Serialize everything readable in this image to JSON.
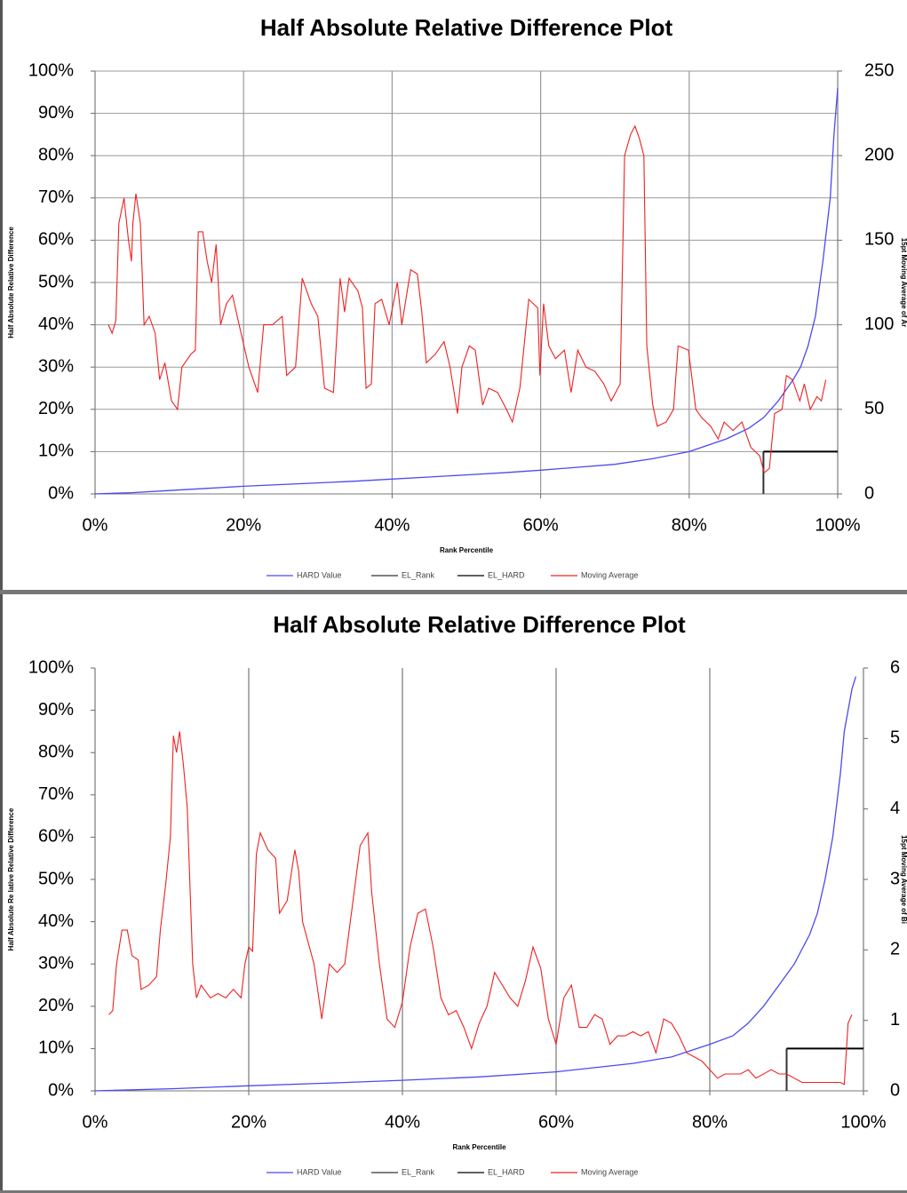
{
  "chart_data": [
    {
      "type": "line",
      "title": "Half Absolute Relative Difference Plot",
      "x_label": "Rank Percentile",
      "y_label": "Half Absolute Relative Difference",
      "y2_label": "15pt Moving Average of Ar",
      "xlim": [
        0,
        100
      ],
      "ylim": [
        0,
        100
      ],
      "y2lim": [
        0,
        250
      ],
      "xticks": [
        {
          "value": 0,
          "label": "0%"
        },
        {
          "value": 20,
          "label": "20%"
        },
        {
          "value": 40,
          "label": "40%"
        },
        {
          "value": 60,
          "label": "60%"
        },
        {
          "value": 80,
          "label": "80%"
        },
        {
          "value": 100,
          "label": "100%"
        }
      ],
      "yticks": [
        {
          "value": 0,
          "label": "0%"
        },
        {
          "value": 10,
          "label": "10%"
        },
        {
          "value": 20,
          "label": "20%"
        },
        {
          "value": 30,
          "label": "30%"
        },
        {
          "value": 40,
          "label": "40%"
        },
        {
          "value": 50,
          "label": "50%"
        },
        {
          "value": 60,
          "label": "60%"
        },
        {
          "value": 70,
          "label": "70%"
        },
        {
          "value": 80,
          "label": "80%"
        },
        {
          "value": 90,
          "label": "90%"
        },
        {
          "value": 100,
          "label": "100%"
        }
      ],
      "y2ticks": [
        0,
        50,
        100,
        150,
        200,
        250
      ],
      "grid": "both",
      "legend": "bottom",
      "series": [
        {
          "name": "HARD Value",
          "color": "#4a4af0",
          "axis": "y",
          "x": [
            0,
            5,
            10,
            15,
            20,
            25,
            30,
            35,
            40,
            45,
            50,
            55,
            60,
            65,
            70,
            75,
            80,
            85,
            88,
            90,
            92,
            94,
            95,
            96,
            97,
            98,
            99,
            99.5,
            100
          ],
          "values": [
            0,
            0.3,
            0.8,
            1.3,
            1.8,
            2.2,
            2.6,
            3.0,
            3.5,
            4.0,
            4.5,
            5.0,
            5.6,
            6.3,
            7.0,
            8.3,
            10,
            13,
            15.5,
            18,
            22,
            27,
            30,
            35,
            42,
            55,
            70,
            85,
            96
          ]
        },
        {
          "name": "EL_Rank",
          "color": "#333333",
          "axis": "y",
          "x": [
            90,
            90
          ],
          "values": [
            0,
            10
          ]
        },
        {
          "name": "EL_HARD",
          "color": "#000000",
          "axis": "y",
          "x": [
            90,
            100
          ],
          "values": [
            10,
            10
          ]
        },
        {
          "name": "Moving Average",
          "color": "#ee2020",
          "axis": "y2",
          "x": [
            1.8,
            2.3,
            2.8,
            3.2,
            3.9,
            4.5,
            4.9,
            5.1,
            5.5,
            6.1,
            6.6,
            7.3,
            8.1,
            8.7,
            9.4,
            10.3,
            11.1,
            11.7,
            12.9,
            13.5,
            13.9,
            14.5,
            15.1,
            15.7,
            16.3,
            16.9,
            17.7,
            18.5,
            19.4,
            20.7,
            21.9,
            22.7,
            23.9,
            25.2,
            25.8,
            27.0,
            27.9,
            29.1,
            30.0,
            30.9,
            32.1,
            33.0,
            33.6,
            34.2,
            35.4,
            36.0,
            36.5,
            37.2,
            37.7,
            38.6,
            39.6,
            40.7,
            41.3,
            42.5,
            43.4,
            44.0,
            44.6,
            45.8,
            47.0,
            47.8,
            48.8,
            49.4,
            50.4,
            51.2,
            52.2,
            53.0,
            54.2,
            55.4,
            56.2,
            57.2,
            58.4,
            59.6,
            59.9,
            60.4,
            61.1,
            62.0,
            63.2,
            64.1,
            65.0,
            66.1,
            67.3,
            68.5,
            69.5,
            70.7,
            71.3,
            72.1,
            72.7,
            73.3,
            73.9,
            74.3,
            75.1,
            75.7,
            76.9,
            77.9,
            78.5,
            79.9,
            80.9,
            81.7,
            82.9,
            83.9,
            84.7,
            85.9,
            87.1,
            88.3,
            89.5,
            90.1,
            90.8,
            91.5,
            92.5,
            93.1,
            93.9,
            94.9,
            95.5,
            96.3,
            97.2,
            97.8,
            98.4
          ],
          "values": [
            100,
            95,
            102.5,
            160,
            175,
            150,
            137.5,
            160,
            177.5,
            160,
            100,
            105,
            95,
            67.5,
            77.5,
            55,
            50,
            75,
            82.5,
            85,
            155,
            155,
            137.5,
            125,
            147.5,
            100,
            112.5,
            117.5,
            100,
            75,
            60,
            100,
            100,
            105,
            70,
            75,
            127.5,
            112.5,
            105,
            62.5,
            60,
            127.5,
            107.5,
            127.5,
            120,
            110,
            62.5,
            65,
            112.5,
            115,
            100,
            125,
            100,
            132.5,
            130,
            107.5,
            77.5,
            82.5,
            90,
            75,
            47.5,
            75,
            87.5,
            85,
            52.5,
            62.5,
            60,
            50,
            42.5,
            62.5,
            115,
            110,
            70,
            112.5,
            87.5,
            80,
            85,
            60,
            85,
            75,
            72.5,
            65,
            55,
            65,
            200,
            212.5,
            217.5,
            210,
            200,
            87.5,
            52.5,
            40,
            42.5,
            50,
            87.5,
            85,
            50,
            45,
            40,
            32.5,
            42.5,
            37.5,
            42.5,
            27.5,
            22.5,
            12.5,
            15,
            47.5,
            50,
            70,
            67.5,
            55,
            65,
            50,
            57.5,
            55,
            67.5
          ]
        }
      ]
    },
    {
      "type": "line",
      "title": "Half Absolute Relative Difference Plot",
      "x_label": "Rank Percentile",
      "y_label": "Half Absolute Re lative Relative Difference",
      "y2_label": "15pt Moving Average of Bi",
      "xlim": [
        0,
        100
      ],
      "ylim": [
        0,
        100
      ],
      "y2lim": [
        0,
        6
      ],
      "xticks": [
        {
          "value": 0,
          "label": "0%"
        },
        {
          "value": 20,
          "label": "20%"
        },
        {
          "value": 40,
          "label": "40%"
        },
        {
          "value": 60,
          "label": "60%"
        },
        {
          "value": 80,
          "label": "80%"
        },
        {
          "value": 100,
          "label": "100%"
        }
      ],
      "yticks": [
        {
          "value": 0,
          "label": "0%"
        },
        {
          "value": 10,
          "label": "10%"
        },
        {
          "value": 20,
          "label": "20%"
        },
        {
          "value": 30,
          "label": "30%"
        },
        {
          "value": 40,
          "label": "40%"
        },
        {
          "value": 50,
          "label": "50%"
        },
        {
          "value": 60,
          "label": "60%"
        },
        {
          "value": 70,
          "label": "70%"
        },
        {
          "value": 80,
          "label": "80%"
        },
        {
          "value": 90,
          "label": "90%"
        },
        {
          "value": 100,
          "label": "100%"
        }
      ],
      "y2ticks": [
        0,
        1,
        2,
        3,
        4,
        5,
        6
      ],
      "grid": "x",
      "legend": "bottom",
      "series": [
        {
          "name": "HARD Value",
          "color": "#4a4af0",
          "axis": "y",
          "x": [
            0,
            10,
            20,
            30,
            40,
            50,
            60,
            70,
            75,
            80,
            83,
            85,
            87,
            89,
            91,
            93,
            94,
            95,
            96,
            97,
            97.5,
            98,
            98.5,
            99
          ],
          "values": [
            0,
            0.5,
            1.2,
            1.8,
            2.5,
            3.3,
            4.5,
            6.5,
            8,
            11,
            13,
            16,
            20,
            25,
            30,
            37,
            42,
            50,
            60,
            75,
            85,
            90,
            95,
            98
          ]
        },
        {
          "name": "EL_Rank",
          "color": "#333333",
          "axis": "y",
          "x": [
            90,
            90
          ],
          "values": [
            0,
            10
          ]
        },
        {
          "name": "EL_HARD",
          "color": "#000000",
          "axis": "y",
          "x": [
            90,
            100
          ],
          "values": [
            10,
            10
          ]
        },
        {
          "name": "Moving Average",
          "color": "#ee2020",
          "axis": "y2",
          "x": [
            1.8,
            2.3,
            2.8,
            3.5,
            4.2,
            4.8,
            5.6,
            6.0,
            7.0,
            8.0,
            8.5,
            9.2,
            9.8,
            10.2,
            10.6,
            11.0,
            11.5,
            12.0,
            12.7,
            13.2,
            13.8,
            15,
            16,
            17,
            18,
            19,
            19.5,
            20,
            20.5,
            21,
            21.5,
            22.5,
            23.5,
            24,
            25,
            26,
            26.5,
            27,
            28.5,
            29.5,
            30.5,
            31.5,
            32.5,
            33.5,
            34.5,
            35.5,
            36,
            37,
            38,
            39,
            40,
            41,
            42,
            43,
            44,
            45,
            46,
            47,
            48,
            49,
            50,
            51,
            52,
            53,
            54,
            55,
            56,
            57,
            58,
            59,
            60,
            61,
            62,
            63,
            64,
            65,
            66,
            67,
            68,
            69,
            70,
            71,
            72,
            73,
            74,
            75,
            76,
            77,
            78,
            79,
            80,
            81,
            82,
            84,
            85,
            86,
            88,
            89,
            90,
            91,
            92,
            94,
            96,
            97,
            97.5,
            98,
            98.5
          ],
          "values": [
            1.08,
            1.14,
            1.8,
            2.28,
            2.28,
            1.92,
            1.86,
            1.44,
            1.5,
            1.62,
            2.28,
            2.94,
            3.6,
            5.04,
            4.8,
            5.1,
            4.62,
            4.02,
            1.8,
            1.32,
            1.5,
            1.32,
            1.38,
            1.32,
            1.44,
            1.32,
            1.8,
            2.04,
            1.98,
            3.36,
            3.66,
            3.42,
            3.3,
            2.52,
            2.7,
            3.42,
            3.12,
            2.4,
            1.8,
            1.02,
            1.8,
            1.68,
            1.8,
            2.64,
            3.48,
            3.66,
            2.82,
            1.8,
            1.02,
            0.9,
            1.26,
            2.04,
            2.52,
            2.58,
            2.04,
            1.32,
            1.08,
            1.14,
            0.9,
            0.6,
            0.96,
            1.2,
            1.68,
            1.5,
            1.32,
            1.2,
            1.56,
            2.04,
            1.74,
            1.02,
            0.66,
            1.32,
            1.5,
            0.9,
            0.9,
            1.08,
            1.02,
            0.66,
            0.78,
            0.78,
            0.84,
            0.78,
            0.84,
            0.54,
            1.02,
            0.96,
            0.78,
            0.54,
            0.48,
            0.42,
            0.3,
            0.18,
            0.24,
            0.24,
            0.3,
            0.18,
            0.3,
            0.24,
            0.24,
            0.18,
            0.12,
            0.12,
            0.12,
            0.12,
            0.09,
            0.96,
            1.08
          ]
        }
      ]
    }
  ]
}
